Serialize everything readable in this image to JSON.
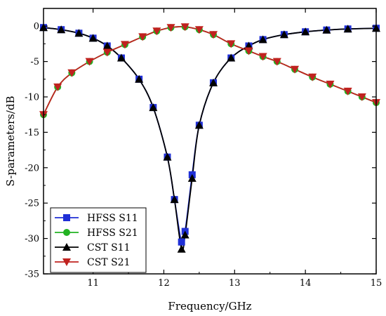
{
  "chart_data": {
    "type": "line",
    "xlabel": "Frequency/GHz",
    "ylabel": "S-parameters/dB",
    "xlim": [
      10.3,
      15
    ],
    "ylim": [
      -35,
      2.5
    ],
    "xticks": [
      11,
      12,
      13,
      14,
      15
    ],
    "xtick_labels": [
      "11",
      "12",
      "13",
      "14",
      "15"
    ],
    "yticks": [
      0,
      -5,
      -10,
      -15,
      -20,
      -25,
      -30,
      -35
    ],
    "ytick_labels": [
      "0",
      "-5",
      "-10",
      "-15",
      "-20",
      "-25",
      "-30",
      "-35"
    ],
    "grid": false,
    "legend_position": "bottom-left",
    "series": [
      {
        "name": "HFSS S11",
        "color": "#1f2fd6",
        "marker": "square",
        "x": [
          10.3,
          10.55,
          10.8,
          11.0,
          11.2,
          11.4,
          11.65,
          11.85,
          12.05,
          12.15,
          12.25,
          12.3,
          12.4,
          12.5,
          12.7,
          12.95,
          13.2,
          13.4,
          13.7,
          14.0,
          14.3,
          14.6,
          15.0
        ],
        "values": [
          -0.2,
          -0.5,
          -1.0,
          -1.7,
          -2.8,
          -4.5,
          -7.5,
          -11.5,
          -18.5,
          -24.5,
          -30.5,
          -29.0,
          -21.0,
          -14.0,
          -8.0,
          -4.5,
          -2.8,
          -1.9,
          -1.2,
          -0.8,
          -0.55,
          -0.4,
          -0.3
        ]
      },
      {
        "name": "HFSS S21",
        "color": "#22b222",
        "marker": "circle",
        "x": [
          10.3,
          10.5,
          10.7,
          10.95,
          11.2,
          11.45,
          11.7,
          11.9,
          12.1,
          12.3,
          12.5,
          12.7,
          12.95,
          13.2,
          13.4,
          13.6,
          13.85,
          14.1,
          14.35,
          14.6,
          14.8,
          15.0
        ],
        "values": [
          -12.5,
          -8.6,
          -6.6,
          -5.0,
          -3.7,
          -2.6,
          -1.5,
          -0.7,
          -0.2,
          -0.1,
          -0.5,
          -1.2,
          -2.5,
          -3.5,
          -4.3,
          -5.0,
          -6.1,
          -7.2,
          -8.2,
          -9.2,
          -10.0,
          -10.8
        ]
      },
      {
        "name": "CST S11",
        "color": "#000000",
        "marker": "triangle-up",
        "x": [
          10.3,
          10.55,
          10.8,
          11.0,
          11.2,
          11.4,
          11.65,
          11.85,
          12.05,
          12.15,
          12.25,
          12.3,
          12.4,
          12.5,
          12.7,
          12.95,
          13.2,
          13.4,
          13.7,
          14.0,
          14.3,
          14.6,
          15.0
        ],
        "values": [
          -0.2,
          -0.5,
          -1.0,
          -1.7,
          -2.8,
          -4.5,
          -7.5,
          -11.5,
          -18.5,
          -24.5,
          -31.5,
          -29.5,
          -21.5,
          -14.0,
          -8.0,
          -4.5,
          -2.8,
          -1.9,
          -1.2,
          -0.8,
          -0.55,
          -0.4,
          -0.3
        ]
      },
      {
        "name": "CST S21",
        "color": "#c0221f",
        "marker": "triangle-down",
        "x": [
          10.3,
          10.5,
          10.7,
          10.95,
          11.2,
          11.45,
          11.7,
          11.9,
          12.1,
          12.3,
          12.5,
          12.7,
          12.95,
          13.2,
          13.4,
          13.6,
          13.85,
          14.1,
          14.35,
          14.6,
          14.8,
          15.0
        ],
        "values": [
          -12.5,
          -8.6,
          -6.6,
          -5.0,
          -3.7,
          -2.6,
          -1.5,
          -0.7,
          -0.2,
          -0.1,
          -0.5,
          -1.2,
          -2.5,
          -3.5,
          -4.3,
          -5.0,
          -6.1,
          -7.2,
          -8.2,
          -9.2,
          -10.0,
          -10.8
        ]
      }
    ]
  }
}
